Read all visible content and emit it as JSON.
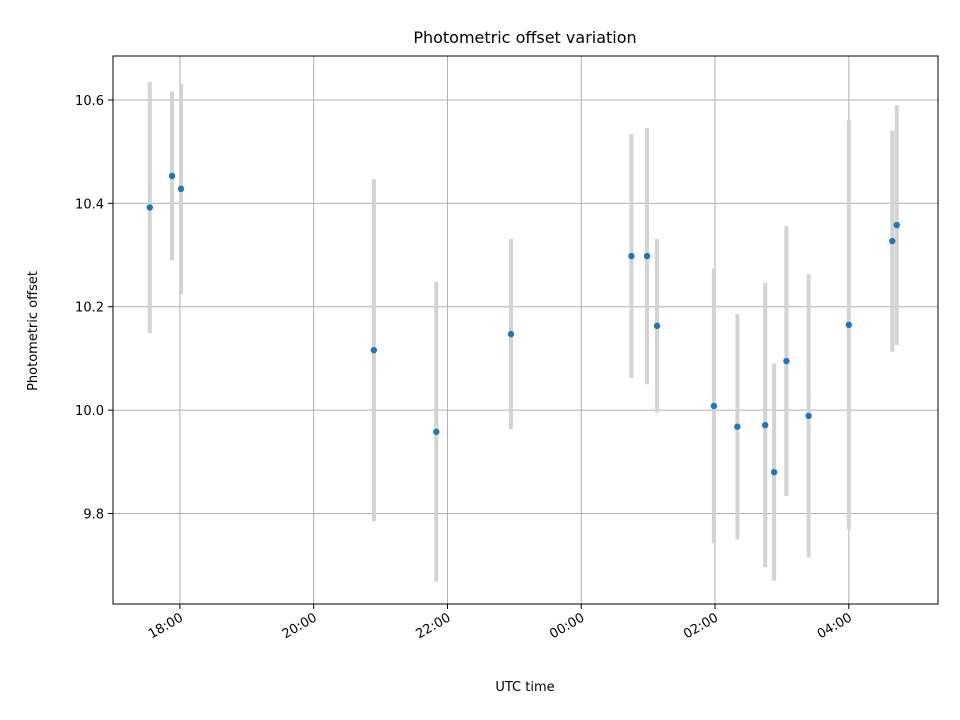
{
  "chart_data": {
    "type": "scatter",
    "title": "Photometric offset variation",
    "xlabel": "UTC time",
    "ylabel": "Photometric offset",
    "x_is_time": true,
    "grid": true,
    "legend": "none",
    "xlim": [
      "17:00",
      "05:20"
    ],
    "ylim": [
      9.625,
      10.685
    ],
    "x_ticks": [
      "18:00",
      "20:00",
      "22:00",
      "00:00",
      "02:00",
      "04:00"
    ],
    "y_ticks": [
      9.8,
      10.0,
      10.2,
      10.4,
      10.6
    ],
    "colors": {
      "points": "#1f77b4",
      "error_bars": "#d3d3d3",
      "grid": "#b0b0b0"
    },
    "series": [
      {
        "points": [
          {
            "x": "17:33",
            "y": 10.392,
            "err": 0.243
          },
          {
            "x": "17:53",
            "y": 10.453,
            "err": 0.163
          },
          {
            "x": "18:01",
            "y": 10.428,
            "err": 0.204
          },
          {
            "x": "20:54",
            "y": 10.116,
            "err": 0.331
          },
          {
            "x": "21:50",
            "y": 9.958,
            "err": 0.29
          },
          {
            "x": "22:57",
            "y": 10.147,
            "err": 0.184
          },
          {
            "x": "00:45",
            "y": 10.298,
            "err": 0.236
          },
          {
            "x": "00:59",
            "y": 10.298,
            "err": 0.248
          },
          {
            "x": "01:08",
            "y": 10.163,
            "err": 0.168
          },
          {
            "x": "01:59",
            "y": 10.008,
            "err": 0.266
          },
          {
            "x": "02:20",
            "y": 9.968,
            "err": 0.218
          },
          {
            "x": "02:45",
            "y": 9.971,
            "err": 0.275
          },
          {
            "x": "02:53",
            "y": 9.88,
            "err": 0.21
          },
          {
            "x": "03:04",
            "y": 10.095,
            "err": 0.261
          },
          {
            "x": "03:24",
            "y": 9.989,
            "err": 0.274
          },
          {
            "x": "04:00",
            "y": 10.165,
            "err": 0.396
          },
          {
            "x": "04:39",
            "y": 10.327,
            "err": 0.214
          },
          {
            "x": "04:43",
            "y": 10.358,
            "err": 0.232
          }
        ]
      }
    ]
  }
}
